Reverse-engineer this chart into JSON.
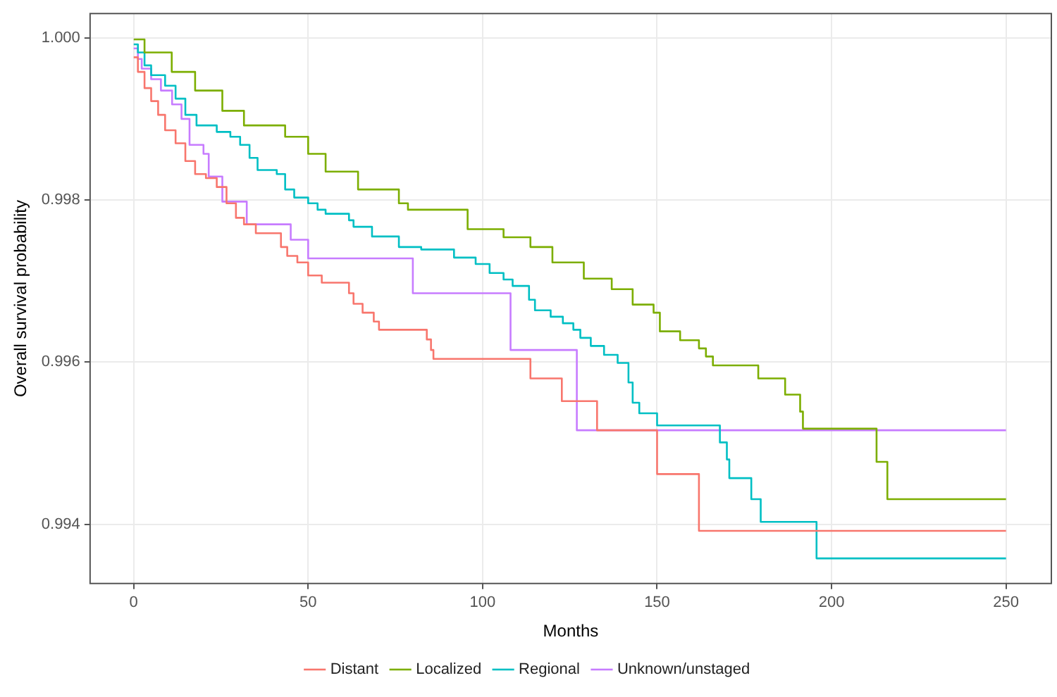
{
  "chart_data": {
    "type": "step",
    "xlabel": "Months",
    "ylabel": "Overall survival probability",
    "xlim": [
      -12.5,
      263
    ],
    "ylim": [
      0.99327,
      1.0003
    ],
    "xticks": [
      0,
      50,
      100,
      150,
      200,
      250
    ],
    "yticks": [
      {
        "value": 0.994,
        "label": "0.994"
      },
      {
        "value": 0.996,
        "label": "0.996"
      },
      {
        "value": 0.998,
        "label": "0.998"
      },
      {
        "value": 1,
        "label": "1.000"
      }
    ],
    "grid": true,
    "legend": "bottom",
    "marker": "none",
    "line_style": "solid",
    "series": [
      {
        "name": "Distant",
        "color": "#f8766d",
        "x": [
          0,
          1.2,
          3.1,
          5,
          7,
          9,
          12,
          14.8,
          17.6,
          20.7,
          23.8,
          26.6,
          29.3,
          31.6,
          35,
          42.2,
          44,
          46.9,
          50,
          53.9,
          61.7,
          63,
          65.6,
          68.8,
          70.3,
          84,
          85.2,
          85.9,
          113.7,
          122.7,
          132.8,
          150,
          162,
          250
        ],
        "values": [
          0.99976,
          0.99958,
          0.99938,
          0.99922,
          0.99905,
          0.99886,
          0.9987,
          0.99848,
          0.99832,
          0.99827,
          0.99816,
          0.99796,
          0.99778,
          0.9977,
          0.99759,
          0.99742,
          0.99731,
          0.99723,
          0.99707,
          0.99698,
          0.99685,
          0.99672,
          0.99661,
          0.9965,
          0.9964,
          0.99628,
          0.99615,
          0.99604,
          0.9958,
          0.99552,
          0.99516,
          0.99462,
          0.99392,
          0.99392
        ]
      },
      {
        "name": "Localized",
        "color": "#7cae00",
        "x": [
          0,
          3.1,
          10.9,
          17.6,
          25.4,
          31.6,
          43.4,
          50,
          55,
          64.3,
          76,
          78.6,
          95.7,
          106,
          113.7,
          120,
          129,
          137,
          143,
          149,
          150.8,
          156.6,
          162,
          164,
          166,
          179,
          186.7,
          191,
          191.8,
          212.9,
          216,
          250
        ],
        "values": [
          0.99998,
          0.99982,
          0.99958,
          0.99935,
          0.9991,
          0.99892,
          0.99878,
          0.99857,
          0.99835,
          0.99813,
          0.99796,
          0.99788,
          0.99764,
          0.99754,
          0.99742,
          0.99723,
          0.99703,
          0.9969,
          0.99671,
          0.99661,
          0.99638,
          0.99627,
          0.99617,
          0.99607,
          0.99596,
          0.9958,
          0.9956,
          0.99539,
          0.99518,
          0.99477,
          0.99431,
          0.99431
        ]
      },
      {
        "name": "Regional",
        "color": "#00bfc4",
        "x": [
          0,
          1.2,
          3.1,
          5,
          9,
          12,
          14.8,
          18,
          23.8,
          27.7,
          30.5,
          33.2,
          35.5,
          41,
          43.4,
          46,
          50,
          52.7,
          55,
          61.7,
          63,
          68.3,
          76,
          82.4,
          91.8,
          98,
          102,
          106,
          108.6,
          113.3,
          115,
          119.5,
          123,
          126,
          128,
          131,
          134.8,
          138.7,
          141.8,
          143,
          144.9,
          150,
          168,
          170,
          170.7,
          177,
          179.7,
          195.7,
          250
        ],
        "values": [
          0.99992,
          0.99982,
          0.99966,
          0.99954,
          0.99941,
          0.99925,
          0.99905,
          0.99892,
          0.99884,
          0.99878,
          0.99868,
          0.99852,
          0.99837,
          0.99832,
          0.99813,
          0.99803,
          0.99796,
          0.99788,
          0.99783,
          0.99775,
          0.99767,
          0.99755,
          0.99742,
          0.99739,
          0.99729,
          0.99721,
          0.9971,
          0.99702,
          0.99694,
          0.99677,
          0.99664,
          0.99656,
          0.99648,
          0.9964,
          0.9963,
          0.9962,
          0.99609,
          0.99599,
          0.99575,
          0.9955,
          0.99537,
          0.99522,
          0.99501,
          0.9948,
          0.99457,
          0.99431,
          0.99403,
          0.99358,
          0.99358
        ]
      },
      {
        "name": "Unknown/unstaged",
        "color": "#c77cff",
        "x": [
          0,
          1.2,
          2.3,
          5,
          7.8,
          11,
          13.7,
          16,
          20,
          21.5,
          25.4,
          32.4,
          45,
          50,
          80,
          108,
          127,
          250
        ],
        "values": [
          0.99987,
          0.99974,
          0.99962,
          0.99949,
          0.99935,
          0.99918,
          0.999,
          0.99868,
          0.99857,
          0.99829,
          0.99798,
          0.9977,
          0.99751,
          0.99728,
          0.99685,
          0.99615,
          0.99516,
          0.99516
        ]
      }
    ]
  }
}
